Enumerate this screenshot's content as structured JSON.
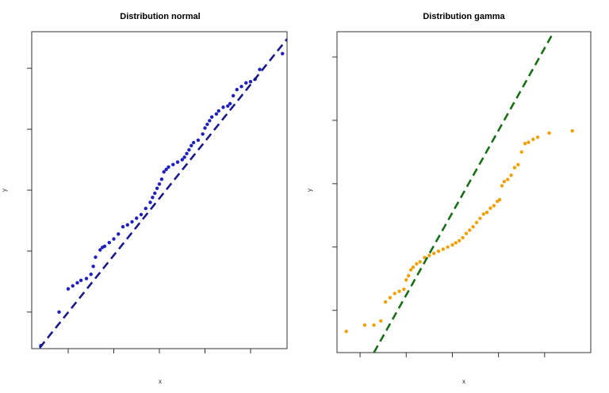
{
  "chart_data": [
    {
      "type": "scatter",
      "title": "Distribution normal",
      "xlabel": "x",
      "ylabel": "y",
      "xlim": [
        -2.8,
        2.8
      ],
      "ylim": [
        -2.6,
        2.6
      ],
      "xticks": [
        -2,
        -1,
        0,
        1,
        2
      ],
      "yticks": [
        -2,
        -1,
        0,
        1,
        2
      ],
      "tick_labels_shown": false,
      "point_color": "#1f1fbf",
      "line_color": "#1a1a8a",
      "reference_line": {
        "style": "dashed",
        "from": [
          -2.8,
          -2.75
        ],
        "to": [
          2.8,
          2.48
        ]
      },
      "points": [
        [
          -2.6,
          -2.55
        ],
        [
          -2.2,
          -2.0
        ],
        [
          -2.0,
          -1.62
        ],
        [
          -1.9,
          -1.57
        ],
        [
          -1.8,
          -1.52
        ],
        [
          -1.72,
          -1.48
        ],
        [
          -1.6,
          -1.45
        ],
        [
          -1.5,
          -1.38
        ],
        [
          -1.45,
          -1.25
        ],
        [
          -1.4,
          -1.1
        ],
        [
          -1.3,
          -0.98
        ],
        [
          -1.25,
          -0.94
        ],
        [
          -1.2,
          -0.92
        ],
        [
          -1.1,
          -0.86
        ],
        [
          -1.0,
          -0.8
        ],
        [
          -0.9,
          -0.72
        ],
        [
          -0.8,
          -0.6
        ],
        [
          -0.7,
          -0.57
        ],
        [
          -0.6,
          -0.52
        ],
        [
          -0.5,
          -0.46
        ],
        [
          -0.4,
          -0.4
        ],
        [
          -0.3,
          -0.3
        ],
        [
          -0.2,
          -0.2
        ],
        [
          -0.15,
          -0.12
        ],
        [
          -0.1,
          -0.05
        ],
        [
          -0.05,
          0.03
        ],
        [
          0.0,
          0.1
        ],
        [
          0.05,
          0.18
        ],
        [
          0.1,
          0.3
        ],
        [
          0.15,
          0.34
        ],
        [
          0.2,
          0.38
        ],
        [
          0.3,
          0.42
        ],
        [
          0.4,
          0.46
        ],
        [
          0.5,
          0.5
        ],
        [
          0.55,
          0.54
        ],
        [
          0.6,
          0.6
        ],
        [
          0.65,
          0.66
        ],
        [
          0.7,
          0.73
        ],
        [
          0.75,
          0.78
        ],
        [
          0.85,
          0.82
        ],
        [
          0.95,
          0.92
        ],
        [
          1.0,
          1.02
        ],
        [
          1.05,
          1.08
        ],
        [
          1.1,
          1.14
        ],
        [
          1.15,
          1.2
        ],
        [
          1.25,
          1.25
        ],
        [
          1.3,
          1.3
        ],
        [
          1.4,
          1.36
        ],
        [
          1.5,
          1.38
        ],
        [
          1.55,
          1.42
        ],
        [
          1.62,
          1.55
        ],
        [
          1.7,
          1.65
        ],
        [
          1.8,
          1.7
        ],
        [
          1.9,
          1.76
        ],
        [
          2.0,
          1.78
        ],
        [
          2.1,
          1.82
        ],
        [
          2.2,
          1.98
        ],
        [
          2.7,
          2.24
        ]
      ]
    },
    {
      "type": "scatter",
      "title": "Distribution gamma",
      "xlabel": "x",
      "ylabel": "y",
      "xlim": [
        0,
        11
      ],
      "ylim": [
        0,
        7.6
      ],
      "xticks": [
        1,
        3,
        5,
        7,
        9
      ],
      "yticks": [
        1,
        2.5,
        4,
        5.5,
        7
      ],
      "tick_labels_shown": false,
      "point_color": "#f0a000",
      "line_color": "#1a6e1a",
      "reference_line": {
        "style": "dashed",
        "from": [
          1.6,
          0
        ],
        "to": [
          9.4,
          7.6
        ]
      },
      "points": [
        [
          0.4,
          0.5
        ],
        [
          1.2,
          0.65
        ],
        [
          1.6,
          0.65
        ],
        [
          1.9,
          0.75
        ],
        [
          2.1,
          1.2
        ],
        [
          2.3,
          1.3
        ],
        [
          2.5,
          1.4
        ],
        [
          2.7,
          1.45
        ],
        [
          2.9,
          1.5
        ],
        [
          3.0,
          1.72
        ],
        [
          3.1,
          1.82
        ],
        [
          3.2,
          1.96
        ],
        [
          3.3,
          2.02
        ],
        [
          3.45,
          2.1
        ],
        [
          3.6,
          2.15
        ],
        [
          3.8,
          2.25
        ],
        [
          4.0,
          2.3
        ],
        [
          4.2,
          2.35
        ],
        [
          4.4,
          2.4
        ],
        [
          4.6,
          2.45
        ],
        [
          4.8,
          2.5
        ],
        [
          5.0,
          2.55
        ],
        [
          5.15,
          2.6
        ],
        [
          5.3,
          2.65
        ],
        [
          5.45,
          2.72
        ],
        [
          5.6,
          2.82
        ],
        [
          5.75,
          2.9
        ],
        [
          5.9,
          2.98
        ],
        [
          6.05,
          3.08
        ],
        [
          6.2,
          3.18
        ],
        [
          6.35,
          3.28
        ],
        [
          6.5,
          3.32
        ],
        [
          6.65,
          3.42
        ],
        [
          6.8,
          3.48
        ],
        [
          6.95,
          3.58
        ],
        [
          7.05,
          3.62
        ],
        [
          7.15,
          3.95
        ],
        [
          7.25,
          4.05
        ],
        [
          7.4,
          4.1
        ],
        [
          7.55,
          4.2
        ],
        [
          7.7,
          4.38
        ],
        [
          7.85,
          4.45
        ],
        [
          8.0,
          4.75
        ],
        [
          8.15,
          4.95
        ],
        [
          8.3,
          4.98
        ],
        [
          8.5,
          5.05
        ],
        [
          8.7,
          5.1
        ],
        [
          9.2,
          5.2
        ],
        [
          10.2,
          5.25
        ]
      ]
    }
  ]
}
